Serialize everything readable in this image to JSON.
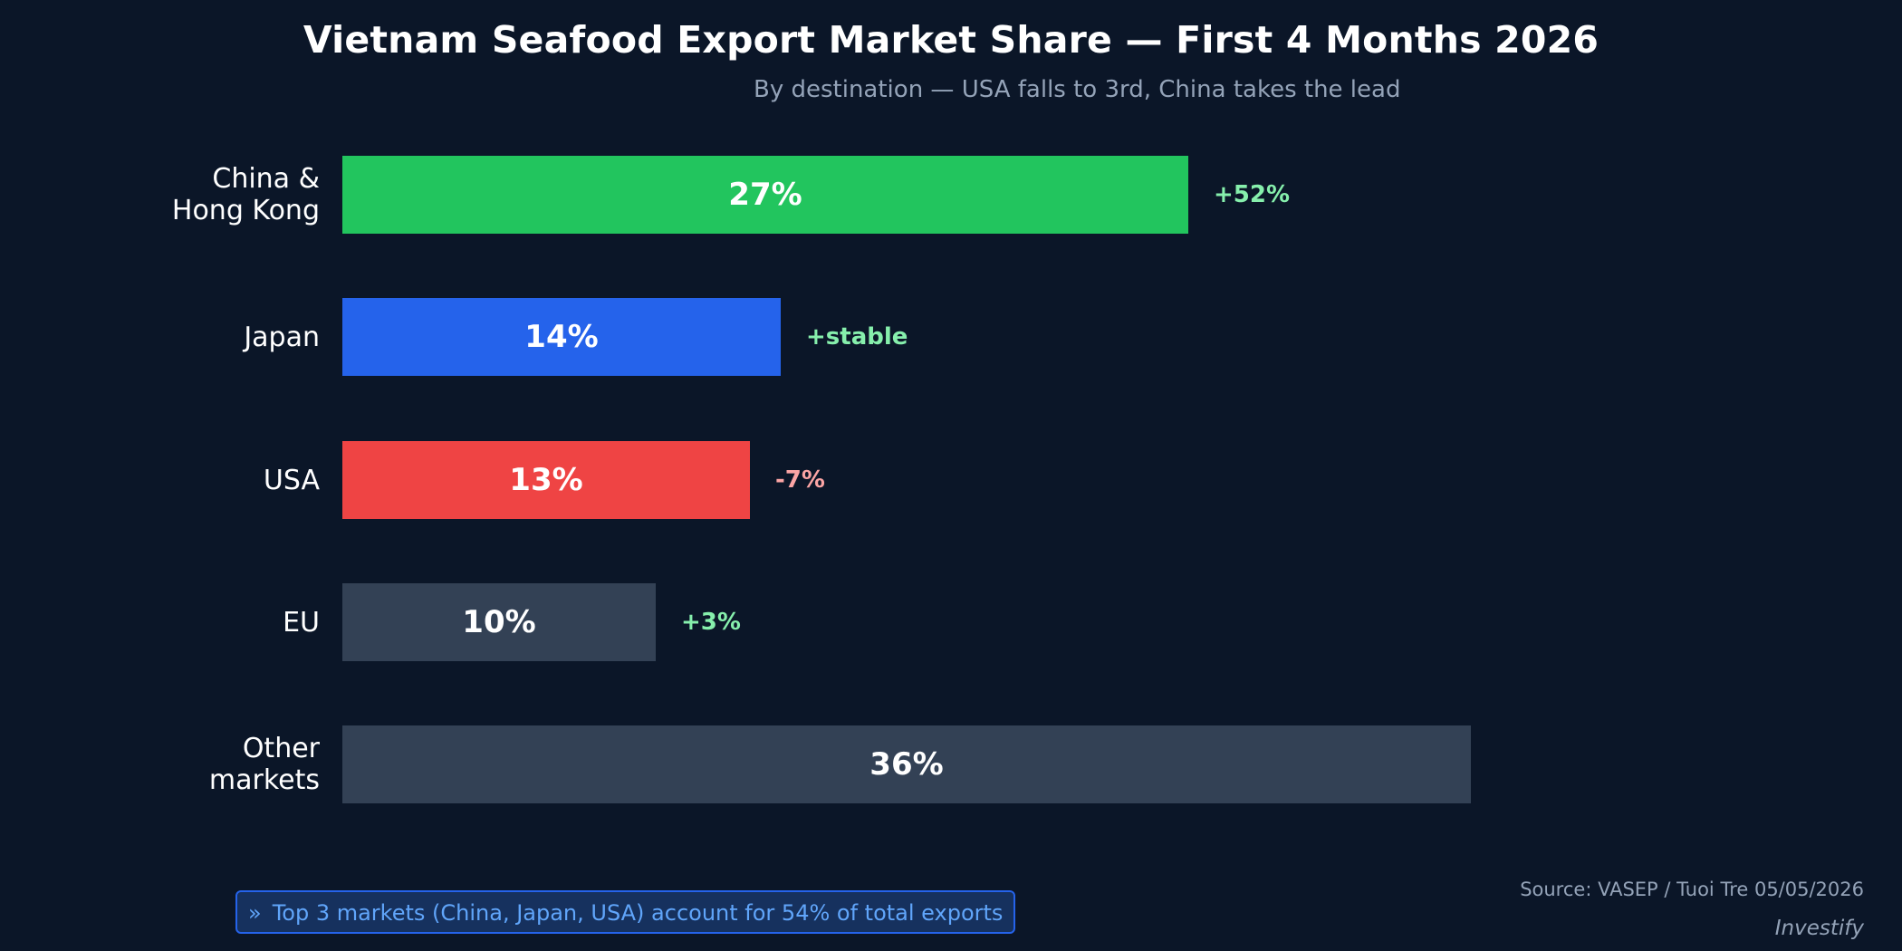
{
  "chart_data": {
    "type": "bar",
    "orientation": "horizontal",
    "title": "Vietnam Seafood Export Market Share — First 4 Months 2026",
    "subtitle": "By destination — USA falls to 3rd, China takes the lead",
    "categories": [
      [
        "China &",
        "Hong Kong"
      ],
      [
        "Japan"
      ],
      [
        "USA"
      ],
      [
        "EU"
      ],
      [
        "Other",
        "markets"
      ]
    ],
    "values": [
      27,
      14,
      13,
      10,
      36
    ],
    "value_labels": [
      "27%",
      "14%",
      "13%",
      "10%",
      "36%"
    ],
    "changes": [
      "+52%",
      "+stable",
      "-7%",
      "+3%",
      ""
    ],
    "bar_colors": [
      "#22c55e",
      "#2563eb",
      "#ef4444",
      "#334155",
      "#334155"
    ],
    "change_colors": [
      "#86efac",
      "#86efac",
      "#fca5a5",
      "#86efac",
      ""
    ],
    "xlim": [
      0,
      40
    ],
    "grid": false,
    "legend": false
  },
  "callout": {
    "icon": "double-chevron-right",
    "glyph": "»",
    "text": "Top 3 markets (China, Japan, USA) account for 54% of total exports"
  },
  "source": "Source: VASEP / Tuoi Tre 05/05/2026",
  "brand": "Investify",
  "colors": {
    "background": "#0b1628",
    "accent": "#2563eb"
  }
}
